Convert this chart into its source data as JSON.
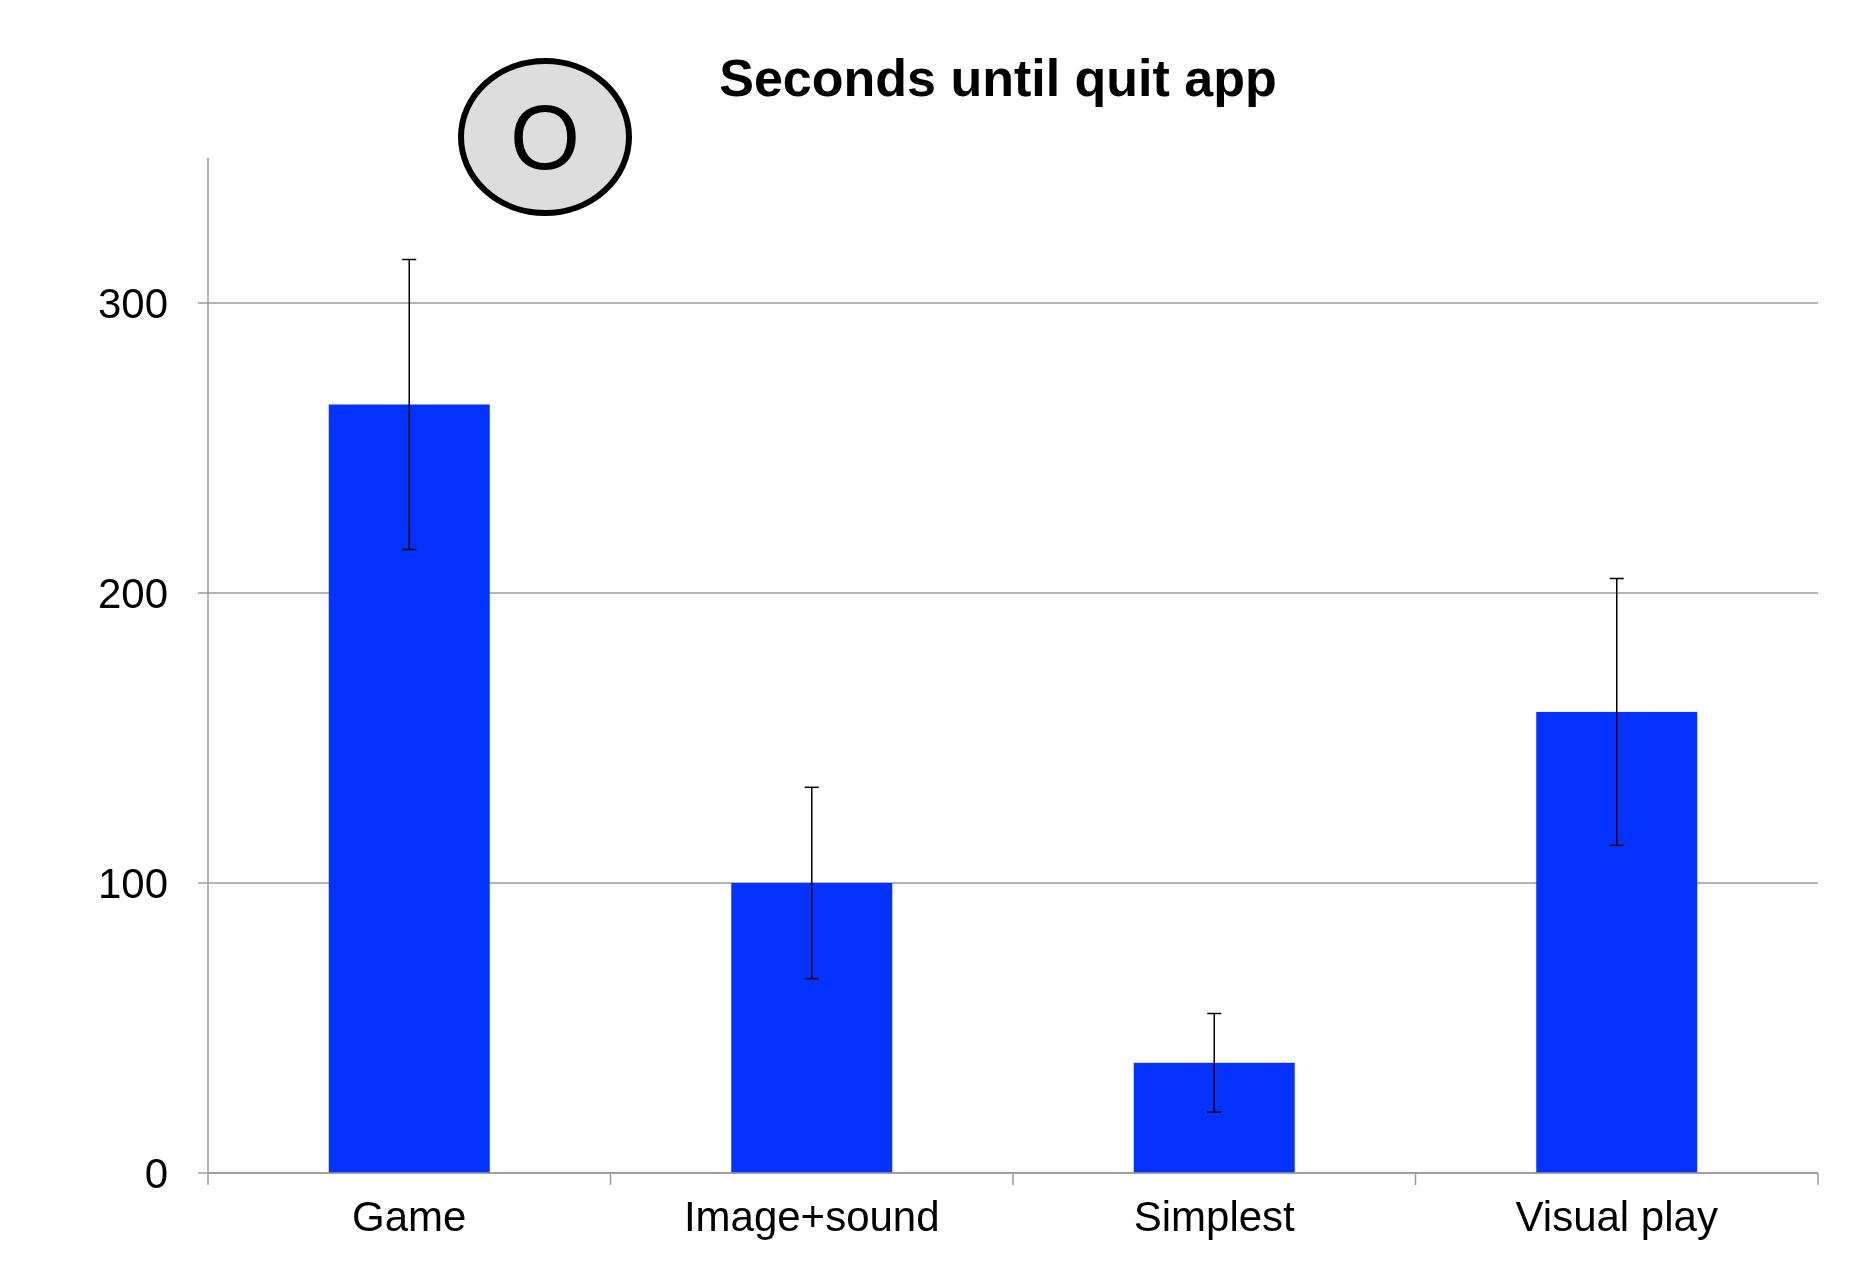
{
  "chart_data": {
    "type": "bar",
    "title": "Seconds until quit app",
    "categories": [
      "Game",
      "Image+sound",
      "Simplest",
      "Visual play"
    ],
    "values": [
      265,
      100,
      38,
      159
    ],
    "errors": [
      50,
      33,
      17,
      46
    ],
    "color": "#0433ff",
    "ylim": [
      0,
      350
    ],
    "yticks": [
      0,
      100,
      200,
      300
    ],
    "grid": "y",
    "annotations": [
      "O"
    ]
  }
}
